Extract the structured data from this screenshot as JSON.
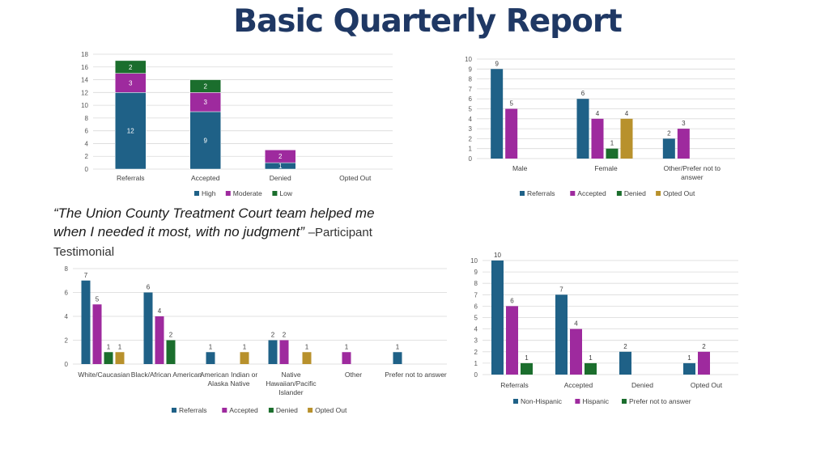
{
  "page": {
    "title": "Basic Quarterly Report",
    "quote_text": "“The Union County Treatment Court team helped me when I needed it most, with no judgment”",
    "quote_attribution": "–Participant Testimonial"
  },
  "colors": {
    "blue": "#1f6187",
    "purple": "#9e2a9e",
    "green": "#1b6e2d",
    "gold": "#b8912c"
  },
  "chart_data": [
    {
      "id": "risk",
      "type": "bar",
      "stacked": true,
      "categories": [
        "Referrals",
        "Accepted",
        "Denied",
        "Opted Out"
      ],
      "series": [
        {
          "name": "High",
          "values": [
            12,
            9,
            1,
            0
          ]
        },
        {
          "name": "Moderate",
          "values": [
            3,
            3,
            2,
            0
          ]
        },
        {
          "name": "Low",
          "values": [
            2,
            2,
            0,
            0
          ]
        }
      ],
      "ylim": [
        0,
        18
      ],
      "yticks": [
        0,
        2,
        4,
        6,
        8,
        10,
        12,
        14,
        16,
        18
      ],
      "grid": true,
      "legend": "bottom"
    },
    {
      "id": "gender",
      "type": "bar",
      "stacked": false,
      "categories": [
        "Male",
        "Female",
        "Other/Prefer not to answer"
      ],
      "series": [
        {
          "name": "Referrals",
          "values": [
            9,
            6,
            2
          ]
        },
        {
          "name": "Accepted",
          "values": [
            5,
            4,
            3
          ]
        },
        {
          "name": "Denied",
          "values": [
            0,
            1,
            0
          ]
        },
        {
          "name": "Opted Out",
          "values": [
            0,
            4,
            0
          ]
        }
      ],
      "ylim": [
        0,
        10
      ],
      "yticks": [
        0,
        1,
        2,
        3,
        4,
        5,
        6,
        7,
        8,
        9,
        10
      ],
      "grid": true,
      "legend": "bottom"
    },
    {
      "id": "race",
      "type": "bar",
      "stacked": false,
      "categories": [
        "White/Caucasian",
        "Black/African American",
        "American Indian or Alaska Native",
        "Native Hawaiian/Pacific Islander",
        "Other",
        "Prefer not to answer"
      ],
      "series": [
        {
          "name": "Referrals",
          "values": [
            7,
            6,
            1,
            2,
            0,
            1
          ]
        },
        {
          "name": "Accepted",
          "values": [
            5,
            4,
            0,
            2,
            1,
            0
          ]
        },
        {
          "name": "Denied",
          "values": [
            1,
            2,
            0,
            0,
            0,
            0
          ]
        },
        {
          "name": "Opted Out",
          "values": [
            1,
            0,
            1,
            1,
            0,
            0
          ]
        }
      ],
      "ylim": [
        0,
        8
      ],
      "yticks": [
        0,
        2,
        4,
        6,
        8
      ],
      "grid": true,
      "legend": "bottom"
    },
    {
      "id": "ethnicity",
      "type": "bar",
      "stacked": false,
      "categories": [
        "Referrals",
        "Accepted",
        "Denied",
        "Opted Out"
      ],
      "series": [
        {
          "name": "Non-Hispanic",
          "values": [
            10,
            7,
            2,
            1
          ]
        },
        {
          "name": "Hispanic",
          "values": [
            6,
            4,
            0,
            2
          ]
        },
        {
          "name": "Prefer not to answer",
          "values": [
            1,
            1,
            0,
            0
          ]
        }
      ],
      "ylim": [
        0,
        10
      ],
      "yticks": [
        0,
        1,
        2,
        3,
        4,
        5,
        6,
        7,
        8,
        9,
        10
      ],
      "grid": true,
      "legend": "bottom"
    }
  ]
}
